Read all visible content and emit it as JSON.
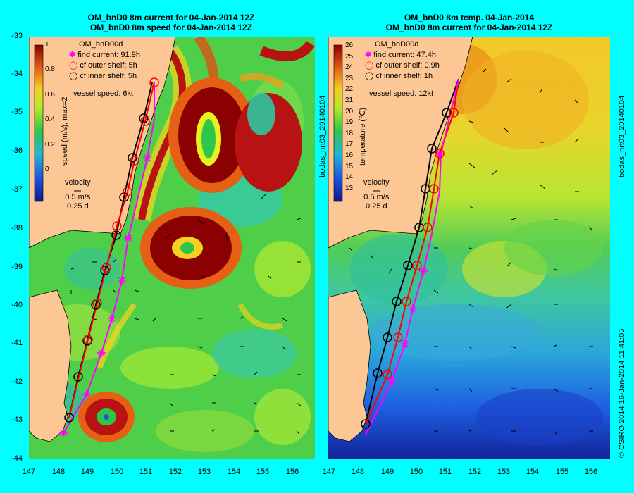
{
  "left": {
    "title_line1": "OM_bnD0 8m current for 04-Jan-2014 12Z",
    "title_line2": "OM_bnD0 8m speed for 04-Jan-2014 12Z",
    "model": "OM_bnD00d",
    "find_current": "find current: 91.9h",
    "outer_shelf": "cf outer shelf: 5h",
    "inner_shelf": "cf inner shelf: 5h",
    "vessel_speed": "vessel speed: 6kt",
    "colorbar_label": "speed (m/s), max=2",
    "colorbar_ticks": [
      "1",
      "0.8",
      "0.6",
      "0.4",
      "0.2",
      "0"
    ],
    "velocity_title": "velocity",
    "velocity_scale": "0.5 m/s",
    "velocity_time": "0.25 d"
  },
  "right": {
    "title_line1": "OM_bnD0 8m temp. 04-Jan-2014",
    "title_line2": "OM_bnD0 8m current for 04-Jan-2014 12Z",
    "model": "OM_bnD00d",
    "find_current": "find current: 47.4h",
    "outer_shelf": "cf outer shelf: 0.9h",
    "inner_shelf": "cf inner shelf: 1h",
    "vessel_speed": "vessel speed: 12kt",
    "colorbar_label": "temperature (℃)",
    "colorbar_ticks": [
      "26",
      "25",
      "24",
      "23",
      "22",
      "21",
      "20",
      "19",
      "18",
      "17",
      "16",
      "15",
      "14",
      "13"
    ],
    "velocity_title": "velocity",
    "velocity_scale": "0.5 m/s",
    "velocity_time": "0.25 d"
  },
  "side_text": {
    "left_vertical": "bodas_nrt03_20140104",
    "right_vertical_top": "bodas_nrt03_20140104",
    "right_vertical_bottom": "© CSIRO 2014   16-Jan-2014 11:41:05"
  },
  "axes": {
    "lat_ticks": [
      "-33",
      "-34",
      "-35",
      "-36",
      "-37",
      "-38",
      "-39",
      "-40",
      "-41",
      "-42",
      "-43",
      "-44"
    ],
    "lon_ticks": [
      "147",
      "148",
      "149",
      "150",
      "151",
      "152",
      "153",
      "154",
      "155",
      "156"
    ]
  },
  "colors": {
    "background": "#00FFFF",
    "land": "#FDC795",
    "find_current": "#FF00FF",
    "outer_shelf": "#FF0000",
    "inner_shelf": "#000000"
  }
}
